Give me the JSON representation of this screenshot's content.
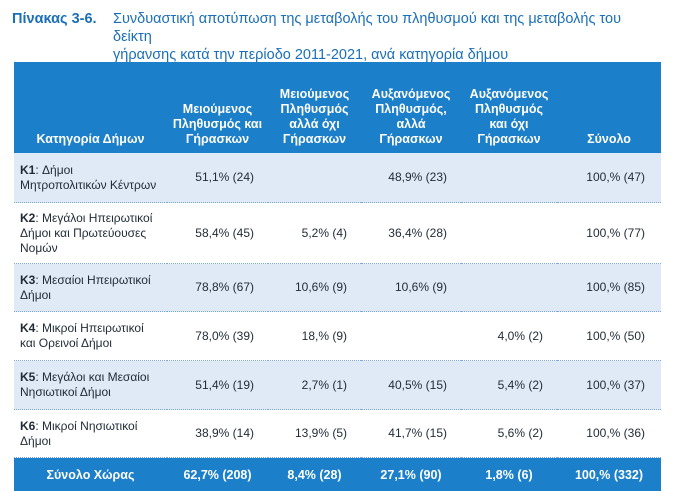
{
  "title": {
    "label": "Πίνακας 3-6.",
    "line1": "Συνδυαστική αποτύπωση της μεταβολής του πληθυσμού και της μεταβολής του δείκτη",
    "line2": "γήρανσης κατά την περίοδο 2011-2021, ανά κατηγορία δήμου"
  },
  "table": {
    "headers": [
      "Κατηγορία Δήμων",
      "Μειούμενος Πληθυσμός και Γήρασκων",
      "Μειούμενος Πληθυσμός αλλά όχι Γήρασκων",
      "Αυξανόμενος Πληθυσμός, αλλά Γήρασκων",
      "Αυξανόμενος Πληθυσμός και όχι Γήρασκων",
      "Σύνολο"
    ],
    "rows": [
      {
        "code": "K1",
        "name": ": Δήμοι Μητροπολιτικών Κέντρων",
        "c1": "51,1% (24)",
        "c2": "",
        "c3": "48,9% (23)",
        "c4": "",
        "total": "100,% (47)"
      },
      {
        "code": "K2",
        "name": ": Μεγάλοι Ηπειρωτικοί Δήμοι και Πρωτεύουσες Νομών",
        "c1": "58,4% (45)",
        "c2": "5,2% (4)",
        "c3": "36,4% (28)",
        "c4": "",
        "total": "100,% (77)"
      },
      {
        "code": "K3",
        "name": ": Μεσαίοι Ηπειρωτικοί Δήμοι",
        "c1": "78,8% (67)",
        "c2": "10,6% (9)",
        "c3": "10,6% (9)",
        "c4": "",
        "total": "100,% (85)"
      },
      {
        "code": "K4",
        "name": ": Μικροί Ηπειρωτικοί και Ορεινοί Δήμοι",
        "c1": "78,0% (39)",
        "c2": "18,% (9)",
        "c3": "",
        "c4": "4,0% (2)",
        "total": "100,% (50)"
      },
      {
        "code": "K5",
        "name": ": Μεγάλοι και Μεσαίοι Νησιωτικοί Δήμοι",
        "c1": "51,4% (19)",
        "c2": "2,7% (1)",
        "c3": "40,5% (15)",
        "c4": "5,4% (2)",
        "total": "100,% (37)"
      },
      {
        "code": "K6",
        "name": ": Μικροί Νησιωτικοί Δήμοι",
        "c1": "38,9% (14)",
        "c2": "13,9% (5)",
        "c3": "41,7% (15)",
        "c4": "5,6% (2)",
        "total": "100,% (36)"
      }
    ],
    "footer": {
      "label": "Σύνολο Χώρας",
      "c1": "62,7% (208)",
      "c2": "8,4% (28)",
      "c3": "27,1% (90)",
      "c4": "1,8% (6)",
      "total": "100,% (332)"
    }
  },
  "colors": {
    "header_bg": "#1b7fc9",
    "band": "#dfeaf6",
    "title": "#1a6fb8"
  }
}
